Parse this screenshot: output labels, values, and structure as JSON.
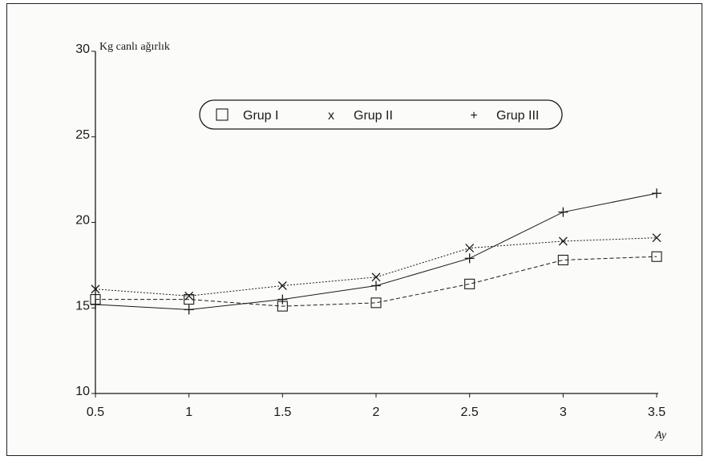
{
  "chart_data": {
    "type": "line",
    "ylabel": "Kg canlı ağırlık",
    "xlabel": "Ay",
    "x": [
      0.5,
      1,
      1.5,
      2,
      2.5,
      3,
      3.5
    ],
    "xticks": [
      "0.5",
      "1",
      "1.5",
      "2",
      "2.5",
      "3",
      "3.5"
    ],
    "yticks": [
      "10",
      "15",
      "20",
      "25",
      "30"
    ],
    "ylim": [
      10,
      30
    ],
    "xlim": [
      0.5,
      3.5
    ],
    "grid": false,
    "legend_position": "top-right",
    "series": [
      {
        "name": "Grup I",
        "marker": "□",
        "values": [
          15.5,
          15.5,
          15.1,
          15.3,
          16.4,
          17.8,
          18.0
        ]
      },
      {
        "name": "Grup II",
        "marker": "x",
        "values": [
          16.1,
          15.7,
          16.3,
          16.8,
          18.5,
          18.9,
          19.1
        ]
      },
      {
        "name": "Grup III",
        "marker": "+",
        "values": [
          15.2,
          14.9,
          15.5,
          16.3,
          17.9,
          20.6,
          21.7
        ]
      }
    ],
    "colors": {
      "ink": "#1a1a1a"
    }
  }
}
